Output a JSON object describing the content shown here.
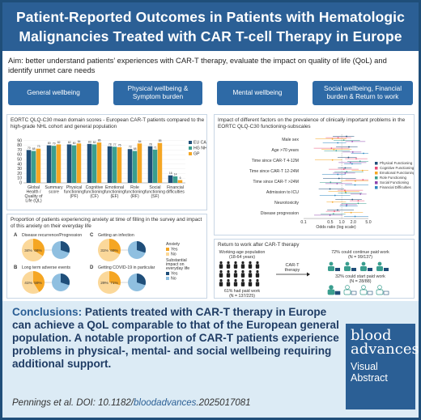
{
  "header": {
    "title_line1": "Patient-Reported Outcomes in Patients with Hematologic",
    "title_line2": "Malignancies Treated with  CAR T-cell Therapy in Europe"
  },
  "aim": "Aim: better understand patients’ experiences with CAR-T therapy, evaluate the impact on quality of life (QoL) and identify unmet care needs",
  "pills": [
    "General wellbeing",
    "Physical wellbeing & Symptom burden",
    "Mental wellbeing",
    "Social wellbeing, Financial burden & Return to work"
  ],
  "panel1": {
    "title": "EORTC QLQ-C30 mean domain scores - European CAR-T patients compared to the high-grade NHL cohort and general population",
    "legend": [
      "EU CAR-T",
      "HG NHL",
      "GP"
    ],
    "colors": [
      "#1f4e79",
      "#3a9e8f",
      "#f5a623"
    ]
  },
  "chart_data": [
    {
      "type": "bar",
      "categories": [
        "Global Health / Quality of Life (QL)",
        "Summary score",
        "Physical functioning (PF)",
        "Cognitive functioning (CF)",
        "Emotional functioning (EF)",
        "Role functioning (RF)",
        "Social functioning (SF)",
        "Financial difficulties"
      ],
      "series": [
        {
          "name": "EU CAR-T",
          "values": [
            70,
            80,
            82,
            83,
            78,
            72,
            78,
            16
          ]
        },
        {
          "name": "HG NHL",
          "values": [
            68,
            79,
            80,
            82,
            77,
            68,
            71,
            14
          ]
        },
        {
          "name": "GP",
          "values": [
            73,
            82,
            84,
            86,
            76,
            84,
            85,
            6
          ]
        }
      ],
      "ylim": [
        0,
        100
      ]
    },
    {
      "type": "scatter",
      "title": "Impact of different factors on the prevalence of clinically important problems in the EORTC QLQ-C30 functioning-subscales",
      "categories": [
        "Male sex",
        "Age >70 years",
        "Time since CAR-T 4-12M",
        "Time since CAR-T 12-24M",
        "Time since CAR-T >24M",
        "Admission to ICU",
        "Neurotoxicity",
        "Disease progression"
      ],
      "series": [
        {
          "name": "Physical Functioning"
        },
        {
          "name": "Cognitive Functioning"
        },
        {
          "name": "Emotional Functioning"
        },
        {
          "name": "Role Functioning"
        },
        {
          "name": "Social Functioning"
        },
        {
          "name": "Financial Difficulties"
        }
      ],
      "xlabel": "Odds ratio (log scale)",
      "x_ticks": [
        "0.1",
        "0.5",
        "1.0",
        "2.0",
        "5.0"
      ]
    }
  ],
  "panel2": {
    "colors": [
      "#1f4e79",
      "#e94e77",
      "#f5a623",
      "#3a9e8f",
      "#8e44ad",
      "#2e86c1"
    ]
  },
  "panel3": {
    "title": "Proportion of patients experiencing anxiety at time of filling in the survey and impact of this anxiety on their everyday life",
    "pies": [
      {
        "letter": "A",
        "label": "Disease recurrence/Progression",
        "anxiety_yes": 34,
        "anxiety_no": 66
      },
      {
        "letter": "C",
        "label": "Getting an infection",
        "anxiety_yes": 31,
        "anxiety_no": 69
      },
      {
        "letter": "B",
        "label": "Long term adverse events",
        "anxiety_yes": 41,
        "anxiety_no": 59
      },
      {
        "letter": "D",
        "label": "Getting COVID-19 in particular",
        "anxiety_yes": 29,
        "anxiety_no": 71
      }
    ],
    "legend_anxiety": "Anxiety",
    "legend_impact": "Substantial impact on everyday life",
    "yes": "Yes",
    "no": "No"
  },
  "panel4": {
    "title": "Return to work after CAR-T therapy",
    "pop_label": "Working-age population",
    "pop_range": "(18-64 years)",
    "paid_work": "61% had paid work",
    "paid_work_n": "(N = 137/225)",
    "therapy": "CAR-T therapy",
    "continue": "72% could continue paid work",
    "continue_n": "(N = 99/137)",
    "start": "32% could start paid work",
    "start_n": "(N = 28/88)"
  },
  "conclusions": {
    "label": "Conclusions:",
    "text": " Patients treated with CAR-T therapy in Europe can achieve a QoL comparable to that of the European general population. A notable proportion of CAR-T patients experience problems in physical-, mental- and social wellbeing requiring additional support."
  },
  "citation": {
    "prefix": "Pennings et al. DOI: 10.1182/",
    "journal": "bloodadvances",
    "suffix": ".2025017081"
  },
  "badge": {
    "line1": "blood",
    "line2": "advances",
    "line3": "Visual Abstract"
  }
}
